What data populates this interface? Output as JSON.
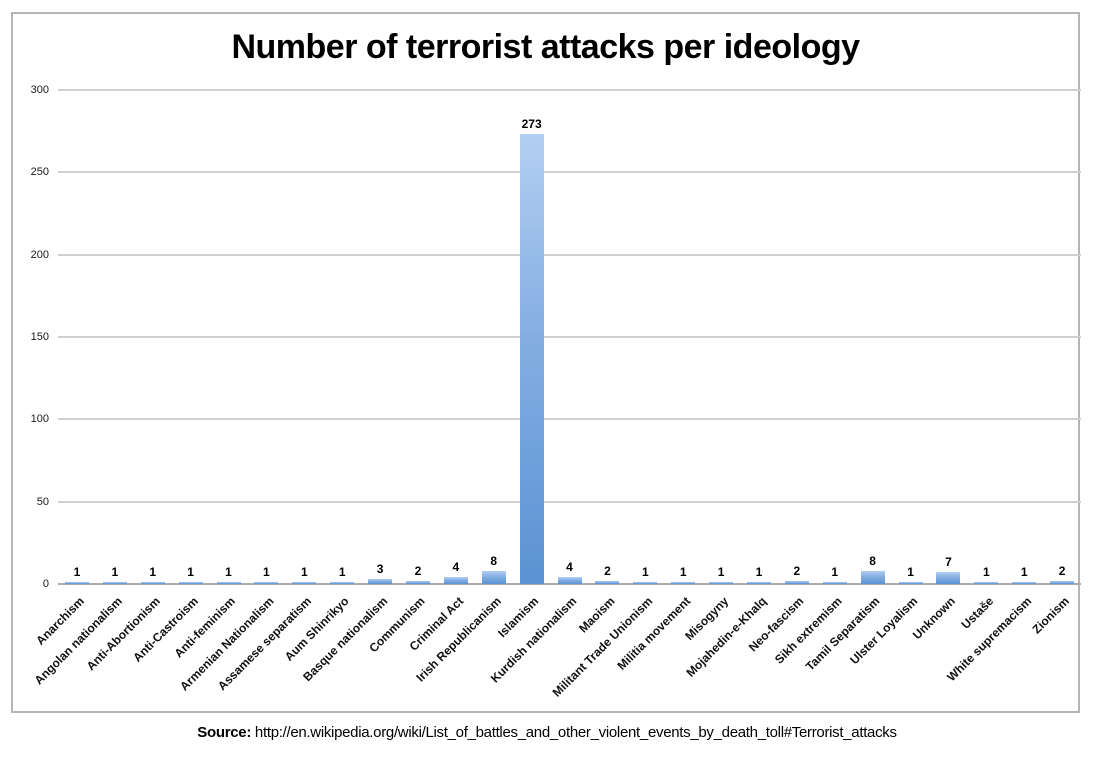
{
  "chart": {
    "title": "Number of terrorist attacks per ideology"
  },
  "chart_data": {
    "type": "bar",
    "title": "Number of terrorist attacks per ideology",
    "categories": [
      "Anarchism",
      "Angolan nationalism",
      "Anti-Abortionism",
      "Anti-Castroism",
      "Anti-feminism",
      "Armenian Nationalism",
      "Assamese separatism",
      "Aum Shinrikyo",
      "Basque nationalism",
      "Communism",
      "Criminal Act",
      "Irish Republicanism",
      "Islamism",
      "Kurdish nationalism",
      "Maoism",
      "Militant Trade Unionism",
      "Militia movement",
      "Misogyny",
      "Mojahedin-e-Khalq",
      "Neo-fascism",
      "Sikh extremism",
      "Tamil Separatism",
      "Ulster Loyalism",
      "Unknown",
      "Ustaše",
      "White supremacism",
      "Zionism"
    ],
    "values": [
      1,
      1,
      1,
      1,
      1,
      1,
      1,
      1,
      3,
      2,
      4,
      8,
      273,
      4,
      2,
      1,
      1,
      1,
      1,
      2,
      1,
      8,
      1,
      7,
      1,
      1,
      2
    ],
    "xlabel": "",
    "ylabel": "",
    "ylim": [
      0,
      300
    ],
    "yticks": [
      0,
      50,
      100,
      150,
      200,
      250,
      300
    ],
    "grid": true,
    "legend": false,
    "data_labels": true,
    "bar_color_top": "#b3cff2",
    "bar_color_bottom": "#5a92d3",
    "gridline_color": "#d0d0d0",
    "axis_line_color": "#ababab"
  },
  "source": {
    "label": "Source:",
    "url": "http://en.wikipedia.org/wiki/List_of_battles_and_other_violent_events_by_death_toll#Terrorist_attacks"
  }
}
